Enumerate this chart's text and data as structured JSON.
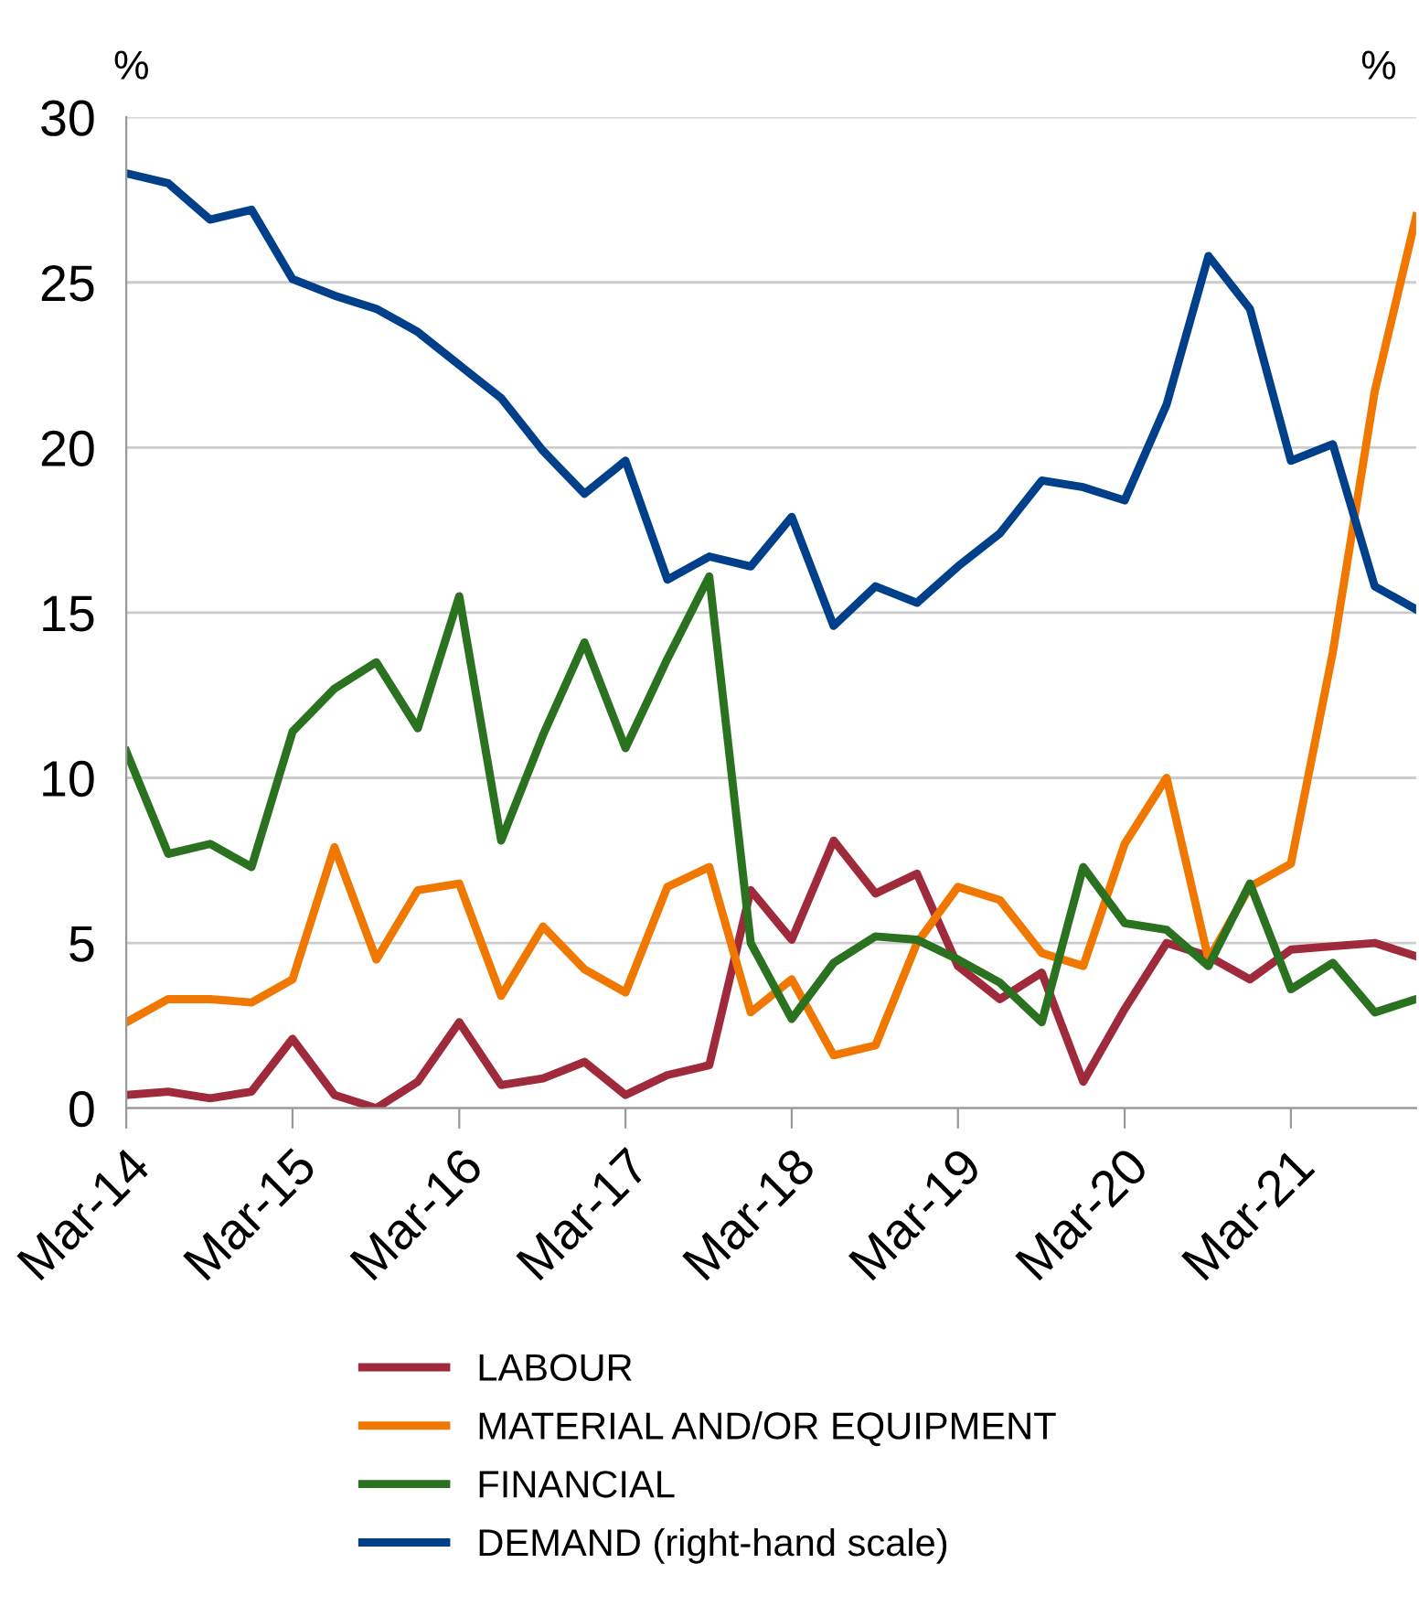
{
  "chart_data": {
    "type": "line",
    "ylabel": "%",
    "y2label": "%",
    "x": [
      "2014-03",
      "2014-06",
      "2014-09",
      "2014-12",
      "2015-03",
      "2015-06",
      "2015-09",
      "2015-12",
      "2016-03",
      "2016-06",
      "2016-09",
      "2016-12",
      "2017-03",
      "2017-06",
      "2017-09",
      "2017-12",
      "2018-03",
      "2018-06",
      "2018-09",
      "2018-12",
      "2019-03",
      "2019-06",
      "2019-09",
      "2019-12",
      "2020-03",
      "2020-06",
      "2020-09",
      "2020-12",
      "2021-03",
      "2021-06",
      "2021-09",
      "2021-12"
    ],
    "series": [
      {
        "name": "LABOUR",
        "color": "#9e2a3c",
        "values": [
          0.4,
          0.5,
          0.3,
          0.5,
          2.1,
          0.4,
          0.0,
          0.8,
          2.6,
          0.7,
          0.9,
          1.4,
          0.4,
          1.0,
          1.3,
          6.6,
          5.1,
          8.1,
          6.5,
          7.1,
          4.3,
          3.3,
          4.1,
          0.8,
          3.0,
          5.0,
          4.6,
          3.9,
          4.8,
          4.9,
          5.0,
          4.6
        ]
      },
      {
        "name": "MATERIAL AND/OR EQUIPMENT",
        "color": "#f07800",
        "values": [
          2.6,
          3.3,
          3.3,
          3.2,
          3.9,
          7.9,
          4.5,
          6.6,
          6.8,
          3.4,
          5.5,
          4.2,
          3.5,
          6.7,
          7.3,
          2.9,
          3.9,
          1.6,
          1.9,
          5.0,
          6.7,
          6.3,
          4.7,
          4.3,
          8.0,
          10.0,
          4.5,
          6.7,
          7.4,
          13.8,
          21.7,
          27.0
        ]
      },
      {
        "name": "FINANCIAL",
        "color": "#2a7120",
        "values": [
          10.8,
          7.7,
          8.0,
          7.3,
          11.4,
          12.7,
          13.5,
          11.5,
          15.5,
          8.1,
          11.3,
          14.1,
          10.9,
          13.6,
          16.1,
          5.0,
          2.7,
          4.4,
          5.2,
          5.1,
          4.5,
          3.8,
          2.6,
          7.3,
          5.6,
          5.4,
          4.3,
          6.8,
          3.6,
          4.4,
          2.9,
          3.3
        ]
      },
      {
        "name": "DEMAND (right-hand scale)",
        "color": "#003f8a",
        "values": [
          28.3,
          28.0,
          26.9,
          27.2,
          25.1,
          24.6,
          24.2,
          23.5,
          22.5,
          21.5,
          19.9,
          18.6,
          19.6,
          16.0,
          16.7,
          16.4,
          17.9,
          14.6,
          15.8,
          15.3,
          16.4,
          17.4,
          19.0,
          18.8,
          18.4,
          21.3,
          25.8,
          24.2,
          19.6,
          20.1,
          15.8,
          15.1
        ]
      }
    ],
    "xlim": [
      "2014-03",
      "2021-12"
    ],
    "xticks": [
      {
        "value": "2014-03",
        "label": "Mar-14"
      },
      {
        "value": "2015-03",
        "label": "Mar-15"
      },
      {
        "value": "2016-03",
        "label": "Mar-16"
      },
      {
        "value": "2017-03",
        "label": "Mar-17"
      },
      {
        "value": "2018-03",
        "label": "Mar-18"
      },
      {
        "value": "2019-03",
        "label": "Mar-19"
      },
      {
        "value": "2020-03",
        "label": "Mar-20"
      },
      {
        "value": "2021-03",
        "label": "Mar-21"
      }
    ],
    "ylim": [
      0,
      30
    ],
    "yticks": [
      0,
      5,
      10,
      15,
      20,
      25,
      30
    ],
    "grid": "y",
    "legend": "bottom",
    "marker": "none",
    "line_style": "solid"
  }
}
